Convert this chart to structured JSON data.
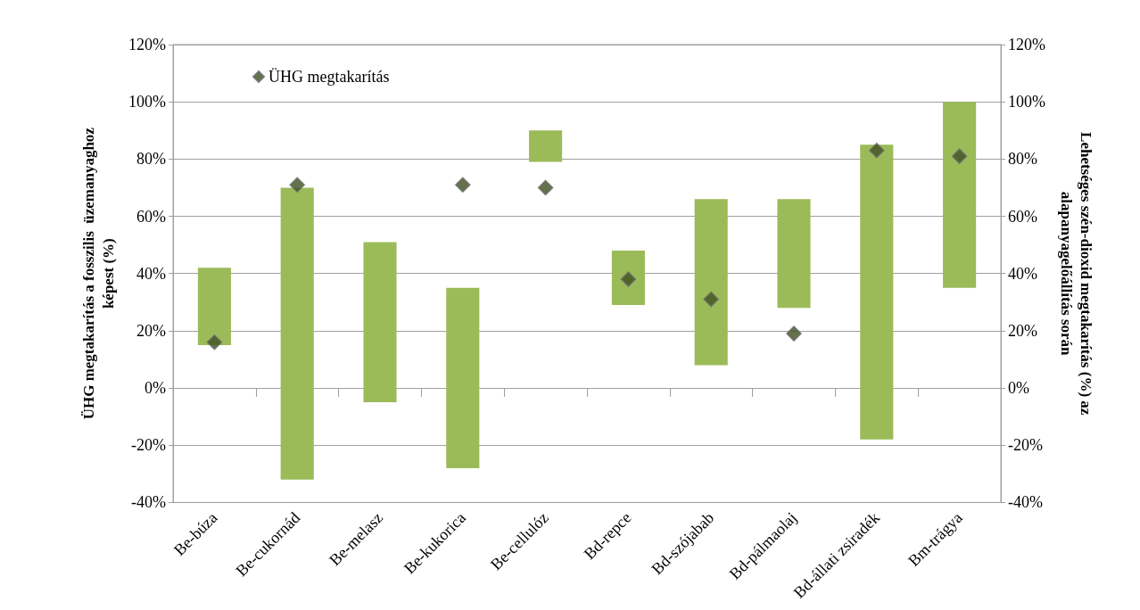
{
  "chart_data": {
    "type": "bar",
    "xlabel": null,
    "ylabel": "ÜHG megtakarítás a fosszilis  üzemanyaghoz\nképest (%)",
    "y2label": "Lehetséges szén-dioxid megtakarítás (%) az\nalapanyagelőállítás során",
    "categories": [
      "Be-búza",
      "Be-cukornád",
      "Be-melasz",
      "Be-kukorica",
      "Be-cellulóz",
      "Bd-repce",
      "Bd-szójabab",
      "Bd-pálmaolaj",
      "Bd-állati zsiradék",
      "Bm-trágya"
    ],
    "series": [
      {
        "color": "#9bbb59",
        "base": [
          15,
          -32,
          -5,
          -28,
          79,
          29,
          8,
          28,
          -18,
          35
        ],
        "values": [
          27,
          102,
          56,
          63,
          11,
          19,
          58,
          38,
          103,
          65
        ]
      },
      {
        "type": "scatter",
        "name": "ÜHG megtakarítás",
        "color": "#3d4f1f",
        "marker": "diamond",
        "values": [
          16,
          71,
          null,
          71,
          70,
          38,
          31,
          19,
          83,
          81
        ]
      }
    ],
    "ylim": [
      -40,
      120
    ],
    "yticks": [
      {
        "value": -40,
        "label": "-40%"
      },
      {
        "value": -20,
        "label": "-20%"
      },
      {
        "value": 0,
        "label": "0%"
      },
      {
        "value": 20,
        "label": "20%"
      },
      {
        "value": 40,
        "label": "40%"
      },
      {
        "value": 60,
        "label": "60%"
      },
      {
        "value": 80,
        "label": "80%"
      },
      {
        "value": 100,
        "label": "100%"
      },
      {
        "value": 120,
        "label": "120%"
      }
    ],
    "y2lim": [
      -40,
      120
    ],
    "y2ticks": [
      {
        "value": -40,
        "label": "-40%"
      },
      {
        "value": -20,
        "label": "-20%"
      },
      {
        "value": 0,
        "label": "0%"
      },
      {
        "value": 20,
        "label": "20%"
      },
      {
        "value": 40,
        "label": "40%"
      },
      {
        "value": 60,
        "label": "60%"
      },
      {
        "value": 80,
        "label": "80%"
      },
      {
        "value": 100,
        "label": "100%"
      },
      {
        "value": 120,
        "label": "120%"
      }
    ],
    "grid": "y",
    "legend": "top left"
  }
}
